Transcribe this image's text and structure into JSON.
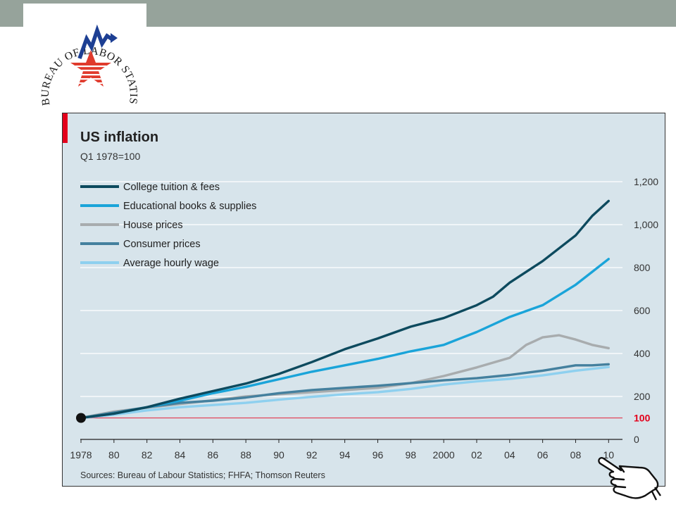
{
  "logo": {
    "text": "U.S. BUREAU OF LABOR STATISTICS",
    "colors": {
      "blue": "#1d3f93",
      "red": "#e03a2c"
    }
  },
  "colors": {
    "top_bar": "#96a39b",
    "panel_bg": "#d7e4eb",
    "accent_red": "#e3001b",
    "baseline": "#e2445a",
    "gridline": "#ffffff"
  },
  "chart_data": {
    "type": "line",
    "title": "US inflation",
    "subtitle": "Q1 1978=100",
    "source": "Sources: Bureau of Labour Statistics; FHFA; Thomson Reuters",
    "ylim": [
      0,
      1200
    ],
    "xlim": [
      1978,
      2010.5
    ],
    "y_ticks": [
      {
        "value": 0,
        "label": "0"
      },
      {
        "value": 200,
        "label": "200"
      },
      {
        "value": 400,
        "label": "400"
      },
      {
        "value": 600,
        "label": "600"
      },
      {
        "value": 800,
        "label": "800"
      },
      {
        "value": 1000,
        "label": "1,000"
      },
      {
        "value": 1200,
        "label": "1,200"
      }
    ],
    "x_ticks": [
      {
        "value": 1978,
        "label": "1978"
      },
      {
        "value": 1980,
        "label": "80"
      },
      {
        "value": 1982,
        "label": "82"
      },
      {
        "value": 1984,
        "label": "84"
      },
      {
        "value": 1986,
        "label": "86"
      },
      {
        "value": 1988,
        "label": "88"
      },
      {
        "value": 1990,
        "label": "90"
      },
      {
        "value": 1992,
        "label": "92"
      },
      {
        "value": 1994,
        "label": "94"
      },
      {
        "value": 1996,
        "label": "96"
      },
      {
        "value": 1998,
        "label": "98"
      },
      {
        "value": 2000,
        "label": "2000"
      },
      {
        "value": 2002,
        "label": "02"
      },
      {
        "value": 2004,
        "label": "04"
      },
      {
        "value": 2006,
        "label": "06"
      },
      {
        "value": 2008,
        "label": "08"
      },
      {
        "value": 2010,
        "label": "10"
      }
    ],
    "baseline": {
      "value": 100,
      "label": "100"
    },
    "start_point": {
      "x": 1978,
      "y": 100
    },
    "legend_position": "top-left",
    "grid": true,
    "series": [
      {
        "name": "College tuition & fees",
        "color": "#0d4a5e",
        "points": [
          [
            1978,
            100
          ],
          [
            1980,
            120
          ],
          [
            1982,
            150
          ],
          [
            1984,
            190
          ],
          [
            1986,
            225
          ],
          [
            1988,
            260
          ],
          [
            1990,
            305
          ],
          [
            1992,
            360
          ],
          [
            1994,
            420
          ],
          [
            1996,
            470
          ],
          [
            1998,
            525
          ],
          [
            2000,
            565
          ],
          [
            2002,
            625
          ],
          [
            2003,
            665
          ],
          [
            2004,
            730
          ],
          [
            2006,
            830
          ],
          [
            2008,
            950
          ],
          [
            2009,
            1040
          ],
          [
            2010,
            1110
          ]
        ]
      },
      {
        "name": "Educational books & supplies",
        "color": "#1aa4d9",
        "points": [
          [
            1978,
            100
          ],
          [
            1980,
            120
          ],
          [
            1982,
            150
          ],
          [
            1984,
            180
          ],
          [
            1986,
            215
          ],
          [
            1988,
            245
          ],
          [
            1990,
            280
          ],
          [
            1992,
            315
          ],
          [
            1994,
            345
          ],
          [
            1996,
            375
          ],
          [
            1998,
            410
          ],
          [
            1999,
            425
          ],
          [
            2000,
            440
          ],
          [
            2001,
            470
          ],
          [
            2002,
            500
          ],
          [
            2004,
            570
          ],
          [
            2006,
            625
          ],
          [
            2008,
            720
          ],
          [
            2009,
            780
          ],
          [
            2010,
            840
          ]
        ]
      },
      {
        "name": "House prices",
        "color": "#a8acae",
        "points": [
          [
            1978,
            100
          ],
          [
            1980,
            130
          ],
          [
            1982,
            148
          ],
          [
            1984,
            165
          ],
          [
            1986,
            182
          ],
          [
            1988,
            200
          ],
          [
            1990,
            210
          ],
          [
            1992,
            220
          ],
          [
            1994,
            230
          ],
          [
            1996,
            240
          ],
          [
            1998,
            262
          ],
          [
            2000,
            295
          ],
          [
            2002,
            335
          ],
          [
            2004,
            380
          ],
          [
            2005,
            440
          ],
          [
            2006,
            475
          ],
          [
            2007,
            485
          ],
          [
            2008,
            465
          ],
          [
            2009,
            440
          ],
          [
            2010,
            425
          ]
        ]
      },
      {
        "name": "Consumer prices",
        "color": "#44809e",
        "points": [
          [
            1978,
            100
          ],
          [
            1980,
            125
          ],
          [
            1982,
            150
          ],
          [
            1984,
            170
          ],
          [
            1986,
            180
          ],
          [
            1988,
            195
          ],
          [
            1990,
            215
          ],
          [
            1992,
            230
          ],
          [
            1994,
            240
          ],
          [
            1996,
            250
          ],
          [
            1998,
            262
          ],
          [
            2000,
            275
          ],
          [
            2002,
            285
          ],
          [
            2004,
            300
          ],
          [
            2006,
            320
          ],
          [
            2008,
            345
          ],
          [
            2009,
            345
          ],
          [
            2010,
            350
          ]
        ]
      },
      {
        "name": "Average hourly wage",
        "color": "#8ed0ef",
        "points": [
          [
            1978,
            100
          ],
          [
            1980,
            115
          ],
          [
            1982,
            135
          ],
          [
            1984,
            150
          ],
          [
            1986,
            160
          ],
          [
            1988,
            170
          ],
          [
            1990,
            185
          ],
          [
            1992,
            198
          ],
          [
            1994,
            210
          ],
          [
            1996,
            220
          ],
          [
            1998,
            235
          ],
          [
            2000,
            255
          ],
          [
            2002,
            270
          ],
          [
            2004,
            282
          ],
          [
            2006,
            298
          ],
          [
            2008,
            320
          ],
          [
            2010,
            337
          ]
        ]
      }
    ]
  }
}
